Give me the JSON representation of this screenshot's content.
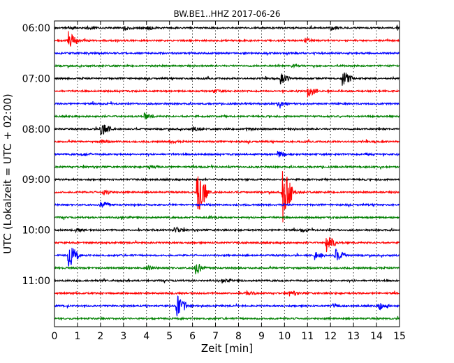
{
  "chart_data": {
    "type": "line",
    "title": "BW.BE1..HHZ 2017-06-26",
    "xlabel": "Zeit  [min]",
    "ylabel": "UTC (Lokalzeit = UTC + 02:00)",
    "xlim": [
      0,
      15
    ],
    "x_ticks": [
      "0",
      "1",
      "2",
      "3",
      "4",
      "5",
      "6",
      "7",
      "8",
      "9",
      "10",
      "11",
      "12",
      "13",
      "14",
      "15"
    ],
    "y_ticks": [
      "06:00",
      "07:00",
      "08:00",
      "09:00",
      "10:00",
      "11:00"
    ],
    "grid": true,
    "colors": [
      "#000000",
      "#ff0000",
      "#0000ff",
      "#008000"
    ],
    "series": [
      {
        "start": "06:00",
        "color": "#000000",
        "events": [
          [
            0.6,
            2
          ],
          [
            1.4,
            2
          ],
          [
            3,
            3
          ],
          [
            4,
            3
          ],
          [
            12,
            2.5
          ],
          [
            14.9,
            4
          ]
        ]
      },
      {
        "start": "06:15",
        "color": "#ff0000",
        "events": [
          [
            0.6,
            13
          ],
          [
            10.9,
            3
          ]
        ]
      },
      {
        "start": "06:30",
        "color": "#0000ff",
        "events": []
      },
      {
        "start": "06:45",
        "color": "#008000",
        "events": [
          [
            10.3,
            2
          ]
        ]
      },
      {
        "start": "07:00",
        "color": "#000000",
        "events": [
          [
            9.8,
            8
          ],
          [
            12.5,
            14
          ]
        ]
      },
      {
        "start": "07:15",
        "color": "#ff0000",
        "events": [
          [
            6.9,
            2
          ],
          [
            11,
            9
          ]
        ]
      },
      {
        "start": "07:30",
        "color": "#0000ff",
        "events": [
          [
            9.7,
            5
          ]
        ]
      },
      {
        "start": "07:45",
        "color": "#008000",
        "events": [
          [
            3.9,
            4
          ]
        ]
      },
      {
        "start": "08:00",
        "color": "#000000",
        "events": [
          [
            2,
            12
          ],
          [
            6,
            3
          ],
          [
            8.3,
            2
          ]
        ]
      },
      {
        "start": "08:15",
        "color": "#ff0000",
        "events": [
          [
            2,
            2
          ],
          [
            5,
            2
          ]
        ]
      },
      {
        "start": "08:30",
        "color": "#0000ff",
        "events": [
          [
            1.2,
            2
          ],
          [
            9.7,
            5
          ],
          [
            13.5,
            2
          ]
        ]
      },
      {
        "start": "08:45",
        "color": "#008000",
        "events": [
          [
            4.1,
            2
          ]
        ]
      },
      {
        "start": "09:00",
        "color": "#000000",
        "events": []
      },
      {
        "start": "09:15",
        "color": "#ff0000",
        "events": [
          [
            2.1,
            4
          ],
          [
            6.2,
            45
          ],
          [
            9.9,
            48
          ]
        ]
      },
      {
        "start": "09:30",
        "color": "#0000ff",
        "events": [
          [
            2,
            6
          ]
        ]
      },
      {
        "start": "09:45",
        "color": "#008000",
        "events": [
          [
            6.7,
            2
          ]
        ]
      },
      {
        "start": "10:00",
        "color": "#000000",
        "events": [
          [
            0.9,
            2
          ],
          [
            5.2,
            5
          ],
          [
            10.7,
            2
          ]
        ]
      },
      {
        "start": "10:15",
        "color": "#ff0000",
        "events": [
          [
            11.8,
            14
          ]
        ]
      },
      {
        "start": "10:30",
        "color": "#0000ff",
        "events": [
          [
            0.6,
            22
          ],
          [
            11.3,
            6
          ],
          [
            12.2,
            10
          ]
        ]
      },
      {
        "start": "10:45",
        "color": "#008000",
        "events": [
          [
            6.1,
            10
          ],
          [
            4,
            3
          ]
        ]
      },
      {
        "start": "11:00",
        "color": "#000000",
        "events": [
          [
            7.3,
            2
          ]
        ]
      },
      {
        "start": "11:15",
        "color": "#ff0000",
        "events": [
          [
            8.3,
            3
          ],
          [
            10.2,
            4
          ]
        ]
      },
      {
        "start": "11:30",
        "color": "#0000ff",
        "events": [
          [
            5.3,
            20
          ],
          [
            14.1,
            5
          ],
          [
            12.1,
            2
          ]
        ]
      },
      {
        "start": "11:45",
        "color": "#008000",
        "events": []
      }
    ]
  }
}
